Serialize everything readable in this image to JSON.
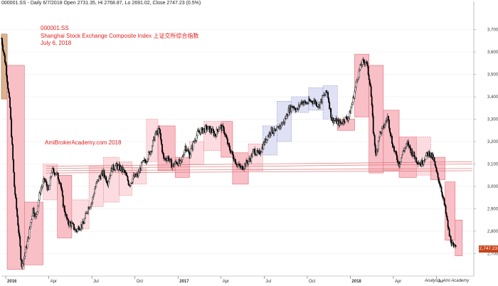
{
  "header": "000001.SS - Daily 6/7/2018 Open 2731.35, Hi 2768.87, Lo 2691.02, Close 2747.23 (0.5%)",
  "title_block": {
    "symbol": "000001.SS",
    "name": "Shanghai Stock Exchange Composite Index 上证交所综合指数",
    "date": "July 6, 2018"
  },
  "watermark": "AmiBrokerAcademy.com  2018",
  "last_price_tag": "2,747.23",
  "credit": "Analysis. Ami Academy",
  "colors": {
    "up_box_fill": "#fbd6da",
    "up_box_border": "#e36a72",
    "down_box_fill": "#f7b4bd",
    "blue_box_fill": "#dcdcf4",
    "blue_box_border": "#7a7ac8",
    "orange_box_fill": "#d6a67a",
    "candle": "#000000",
    "trend_lines": "#e0787a",
    "title_red": "#e0201c"
  },
  "chart_data": {
    "type": "candlestick",
    "title": "Shanghai Stock Exchange Composite Index 上证交所综合指数",
    "ylim": [
      2600,
      3800
    ],
    "y_ticks": [
      2700,
      2800,
      2900,
      3000,
      3100,
      3200,
      3300,
      3400,
      3500,
      3600,
      3700
    ],
    "y_tick_labels": [
      "2,700",
      "2,800",
      "2,900",
      "3,000",
      "3,100",
      "3,200",
      "3,300",
      "3,400",
      "3,500",
      "3,600",
      "3,700"
    ],
    "x_ticks": [
      "2016",
      "Apr",
      "Jul",
      "Oct",
      "2017",
      "Apr",
      "Jul",
      "Oct",
      "2018",
      "Apr",
      "Jul"
    ],
    "x_tick_months": [
      0,
      3,
      6,
      9,
      12,
      15,
      18,
      21,
      24,
      27,
      30
    ],
    "month_span": [
      -0.3,
      32.6
    ],
    "price_path": [
      [
        -0.3,
        3660
      ],
      [
        0.0,
        3540
      ],
      [
        0.3,
        3350
      ],
      [
        0.6,
        3000
      ],
      [
        0.9,
        2800
      ],
      [
        1.1,
        2650
      ],
      [
        1.3,
        2690
      ],
      [
        1.6,
        2780
      ],
      [
        1.9,
        2900
      ],
      [
        2.1,
        2860
      ],
      [
        2.4,
        2980
      ],
      [
        2.7,
        3030
      ],
      [
        3.0,
        2980
      ],
      [
        3.2,
        3070
      ],
      [
        3.5,
        3060
      ],
      [
        3.8,
        3020
      ],
      [
        4.0,
        2920
      ],
      [
        4.3,
        2840
      ],
      [
        4.6,
        2830
      ],
      [
        4.9,
        2800
      ],
      [
        5.1,
        2820
      ],
      [
        5.4,
        2830
      ],
      [
        5.7,
        2900
      ],
      [
        6.0,
        2930
      ],
      [
        6.2,
        2990
      ],
      [
        6.5,
        3040
      ],
      [
        6.8,
        3060
      ],
      [
        7.1,
        3020
      ],
      [
        7.4,
        3080
      ],
      [
        7.7,
        3090
      ],
      [
        8.0,
        3080
      ],
      [
        8.3,
        3060
      ],
      [
        8.6,
        3010
      ],
      [
        8.9,
        3040
      ],
      [
        9.2,
        3050
      ],
      [
        9.5,
        3100
      ],
      [
        9.8,
        3120
      ],
      [
        10.1,
        3160
      ],
      [
        10.4,
        3230
      ],
      [
        10.7,
        3250
      ],
      [
        11.0,
        3120
      ],
      [
        11.3,
        3130
      ],
      [
        11.6,
        3090
      ],
      [
        11.9,
        3110
      ],
      [
        12.2,
        3100
      ],
      [
        12.5,
        3180
      ],
      [
        12.8,
        3140
      ],
      [
        13.1,
        3200
      ],
      [
        13.4,
        3240
      ],
      [
        13.7,
        3250
      ],
      [
        14.0,
        3260
      ],
      [
        14.3,
        3250
      ],
      [
        14.6,
        3230
      ],
      [
        14.9,
        3270
      ],
      [
        15.2,
        3250
      ],
      [
        15.5,
        3180
      ],
      [
        15.8,
        3140
      ],
      [
        16.1,
        3100
      ],
      [
        16.4,
        3080
      ],
      [
        16.7,
        3100
      ],
      [
        17.0,
        3120
      ],
      [
        17.3,
        3160
      ],
      [
        17.6,
        3140
      ],
      [
        17.9,
        3180
      ],
      [
        18.2,
        3220
      ],
      [
        18.5,
        3250
      ],
      [
        18.8,
        3240
      ],
      [
        19.1,
        3270
      ],
      [
        19.4,
        3290
      ],
      [
        19.7,
        3340
      ],
      [
        20.0,
        3360
      ],
      [
        20.3,
        3340
      ],
      [
        20.6,
        3380
      ],
      [
        20.9,
        3370
      ],
      [
        21.2,
        3380
      ],
      [
        21.5,
        3380
      ],
      [
        21.8,
        3360
      ],
      [
        22.1,
        3400
      ],
      [
        22.4,
        3420
      ],
      [
        22.7,
        3300
      ],
      [
        23.0,
        3290
      ],
      [
        23.3,
        3280
      ],
      [
        23.6,
        3300
      ],
      [
        23.9,
        3310
      ],
      [
        24.2,
        3390
      ],
      [
        24.5,
        3490
      ],
      [
        24.8,
        3550
      ],
      [
        25.1,
        3560
      ],
      [
        25.4,
        3450
      ],
      [
        25.6,
        3250
      ],
      [
        25.8,
        3130
      ],
      [
        26.0,
        3230
      ],
      [
        26.3,
        3260
      ],
      [
        26.6,
        3310
      ],
      [
        26.9,
        3200
      ],
      [
        27.1,
        3150
      ],
      [
        27.4,
        3100
      ],
      [
        27.7,
        3160
      ],
      [
        28.0,
        3190
      ],
      [
        28.3,
        3150
      ],
      [
        28.6,
        3120
      ],
      [
        28.9,
        3100
      ],
      [
        29.2,
        3130
      ],
      [
        29.5,
        3150
      ],
      [
        29.8,
        3120
      ],
      [
        30.0,
        3060
      ],
      [
        30.3,
        3000
      ],
      [
        30.6,
        2900
      ],
      [
        30.9,
        2780
      ],
      [
        31.2,
        2720
      ],
      [
        31.4,
        2750
      ]
    ],
    "boxes": [
      {
        "x0": -0.3,
        "x1": 0.1,
        "low": 3390,
        "high": 3680,
        "style": "orange"
      },
      {
        "x0": 0.1,
        "x1": 1.3,
        "low": 2630,
        "high": 3540,
        "style": "down"
      },
      {
        "x0": 1.3,
        "x1": 2.6,
        "low": 2650,
        "high": 2930,
        "style": "down"
      },
      {
        "x0": 2.6,
        "x1": 3.6,
        "low": 2940,
        "high": 3100,
        "style": "up"
      },
      {
        "x0": 3.6,
        "x1": 4.6,
        "low": 2770,
        "high": 3050,
        "style": "down"
      },
      {
        "x0": 4.6,
        "x1": 5.8,
        "low": 2810,
        "high": 2940,
        "style": "up"
      },
      {
        "x0": 5.8,
        "x1": 6.8,
        "low": 2910,
        "high": 3090,
        "style": "up"
      },
      {
        "x0": 6.8,
        "x1": 7.9,
        "low": 2930,
        "high": 3130,
        "style": "up"
      },
      {
        "x0": 7.9,
        "x1": 8.8,
        "low": 2960,
        "high": 3110,
        "style": "up"
      },
      {
        "x0": 8.8,
        "x1": 9.8,
        "low": 3010,
        "high": 3080,
        "style": "up"
      },
      {
        "x0": 9.8,
        "x1": 10.6,
        "low": 3110,
        "high": 3300,
        "style": "up"
      },
      {
        "x0": 10.6,
        "x1": 11.8,
        "low": 3070,
        "high": 3270,
        "style": "down"
      },
      {
        "x0": 11.8,
        "x1": 12.8,
        "low": 3040,
        "high": 3130,
        "style": "down"
      },
      {
        "x0": 12.8,
        "x1": 13.8,
        "low": 3100,
        "high": 3200,
        "style": "up"
      },
      {
        "x0": 13.8,
        "x1": 15.0,
        "low": 3160,
        "high": 3290,
        "style": "up"
      },
      {
        "x0": 15.0,
        "x1": 15.8,
        "low": 3130,
        "high": 3290,
        "style": "down"
      },
      {
        "x0": 15.8,
        "x1": 16.9,
        "low": 3010,
        "high": 3150,
        "style": "down"
      },
      {
        "x0": 16.9,
        "x1": 17.9,
        "low": 3070,
        "high": 3190,
        "style": "up"
      },
      {
        "x0": 17.9,
        "x1": 18.9,
        "low": 3140,
        "high": 3270,
        "style": "blue"
      },
      {
        "x0": 18.9,
        "x1": 19.9,
        "low": 3200,
        "high": 3380,
        "style": "blue"
      },
      {
        "x0": 19.9,
        "x1": 21.1,
        "low": 3330,
        "high": 3400,
        "style": "blue"
      },
      {
        "x0": 21.1,
        "x1": 22.1,
        "low": 3340,
        "high": 3440,
        "style": "blue"
      },
      {
        "x0": 22.1,
        "x1": 23.1,
        "low": 3300,
        "high": 3450,
        "style": "blue"
      },
      {
        "x0": 23.1,
        "x1": 24.3,
        "low": 3250,
        "high": 3300,
        "style": "down"
      },
      {
        "x0": 24.3,
        "x1": 25.3,
        "low": 3310,
        "high": 3590,
        "style": "down"
      },
      {
        "x0": 25.3,
        "x1": 26.3,
        "low": 3060,
        "high": 3540,
        "style": "down"
      },
      {
        "x0": 26.3,
        "x1": 27.4,
        "low": 3070,
        "high": 3340,
        "style": "down"
      },
      {
        "x0": 27.4,
        "x1": 28.6,
        "low": 3040,
        "high": 3220,
        "style": "down"
      },
      {
        "x0": 28.6,
        "x1": 29.6,
        "low": 3050,
        "high": 3220,
        "style": "up"
      },
      {
        "x0": 29.6,
        "x1": 30.6,
        "low": 3030,
        "high": 3130,
        "style": "down"
      },
      {
        "x0": 30.6,
        "x1": 31.3,
        "low": 2760,
        "high": 3020,
        "style": "down"
      },
      {
        "x0": 31.3,
        "x1": 31.8,
        "low": 2690,
        "high": 2850,
        "style": "down"
      }
    ],
    "trend_lines": [
      {
        "from": [
          2.8,
          3090
        ],
        "to": [
          32.5,
          3110
        ]
      },
      {
        "from": [
          2.8,
          3080
        ],
        "to": [
          32.5,
          3100
        ]
      },
      {
        "from": [
          2.8,
          3070
        ],
        "to": [
          32.5,
          3080
        ]
      },
      {
        "from": [
          2.8,
          3060
        ],
        "to": [
          32.5,
          3070
        ]
      }
    ],
    "last_close": 2747.23
  }
}
